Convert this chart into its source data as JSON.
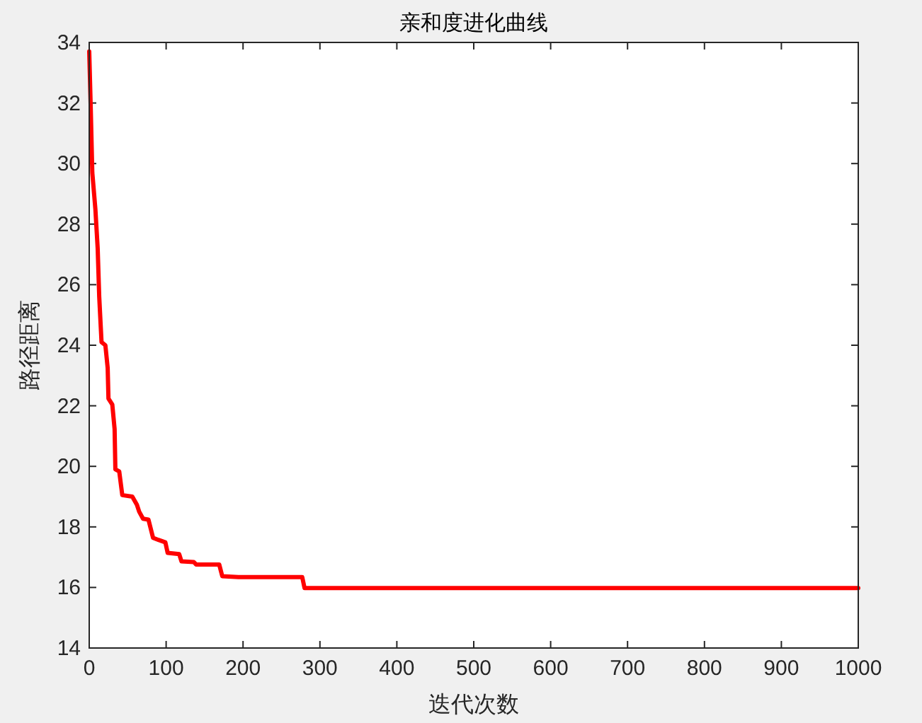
{
  "chart_data": {
    "type": "line",
    "title": "亲和度进化曲线",
    "xlabel": "迭代次数",
    "ylabel": "路径距离",
    "xlim": [
      0,
      1000
    ],
    "xticks": [
      0,
      100,
      200,
      300,
      400,
      500,
      600,
      700,
      800,
      900,
      1000
    ],
    "ylim": [
      14,
      34
    ],
    "yticks": [
      14,
      16,
      18,
      20,
      22,
      24,
      26,
      28,
      30,
      32,
      34
    ],
    "grid": false,
    "marker": "none",
    "line_style": "solid",
    "series": [
      {
        "color": "#ff0000",
        "x": [
          0,
          2,
          4,
          8,
          11,
          13,
          16,
          21,
          24,
          25,
          30,
          33,
          34,
          39,
          43,
          56,
          62,
          65,
          70,
          77,
          83,
          90,
          99,
          102,
          117,
          120,
          136,
          139,
          169,
          173,
          194,
          277,
          280,
          1000
        ],
        "values": [
          33.7,
          31.8,
          29.7,
          28.5,
          27.2,
          25.6,
          24.1,
          24.0,
          23.25,
          22.24,
          22.04,
          21.23,
          19.9,
          19.83,
          19.05,
          19.0,
          18.73,
          18.5,
          18.27,
          18.24,
          17.64,
          17.57,
          17.49,
          17.14,
          17.1,
          16.86,
          16.84,
          16.76,
          16.76,
          16.37,
          16.34,
          16.34,
          15.98,
          15.98
        ]
      }
    ]
  }
}
